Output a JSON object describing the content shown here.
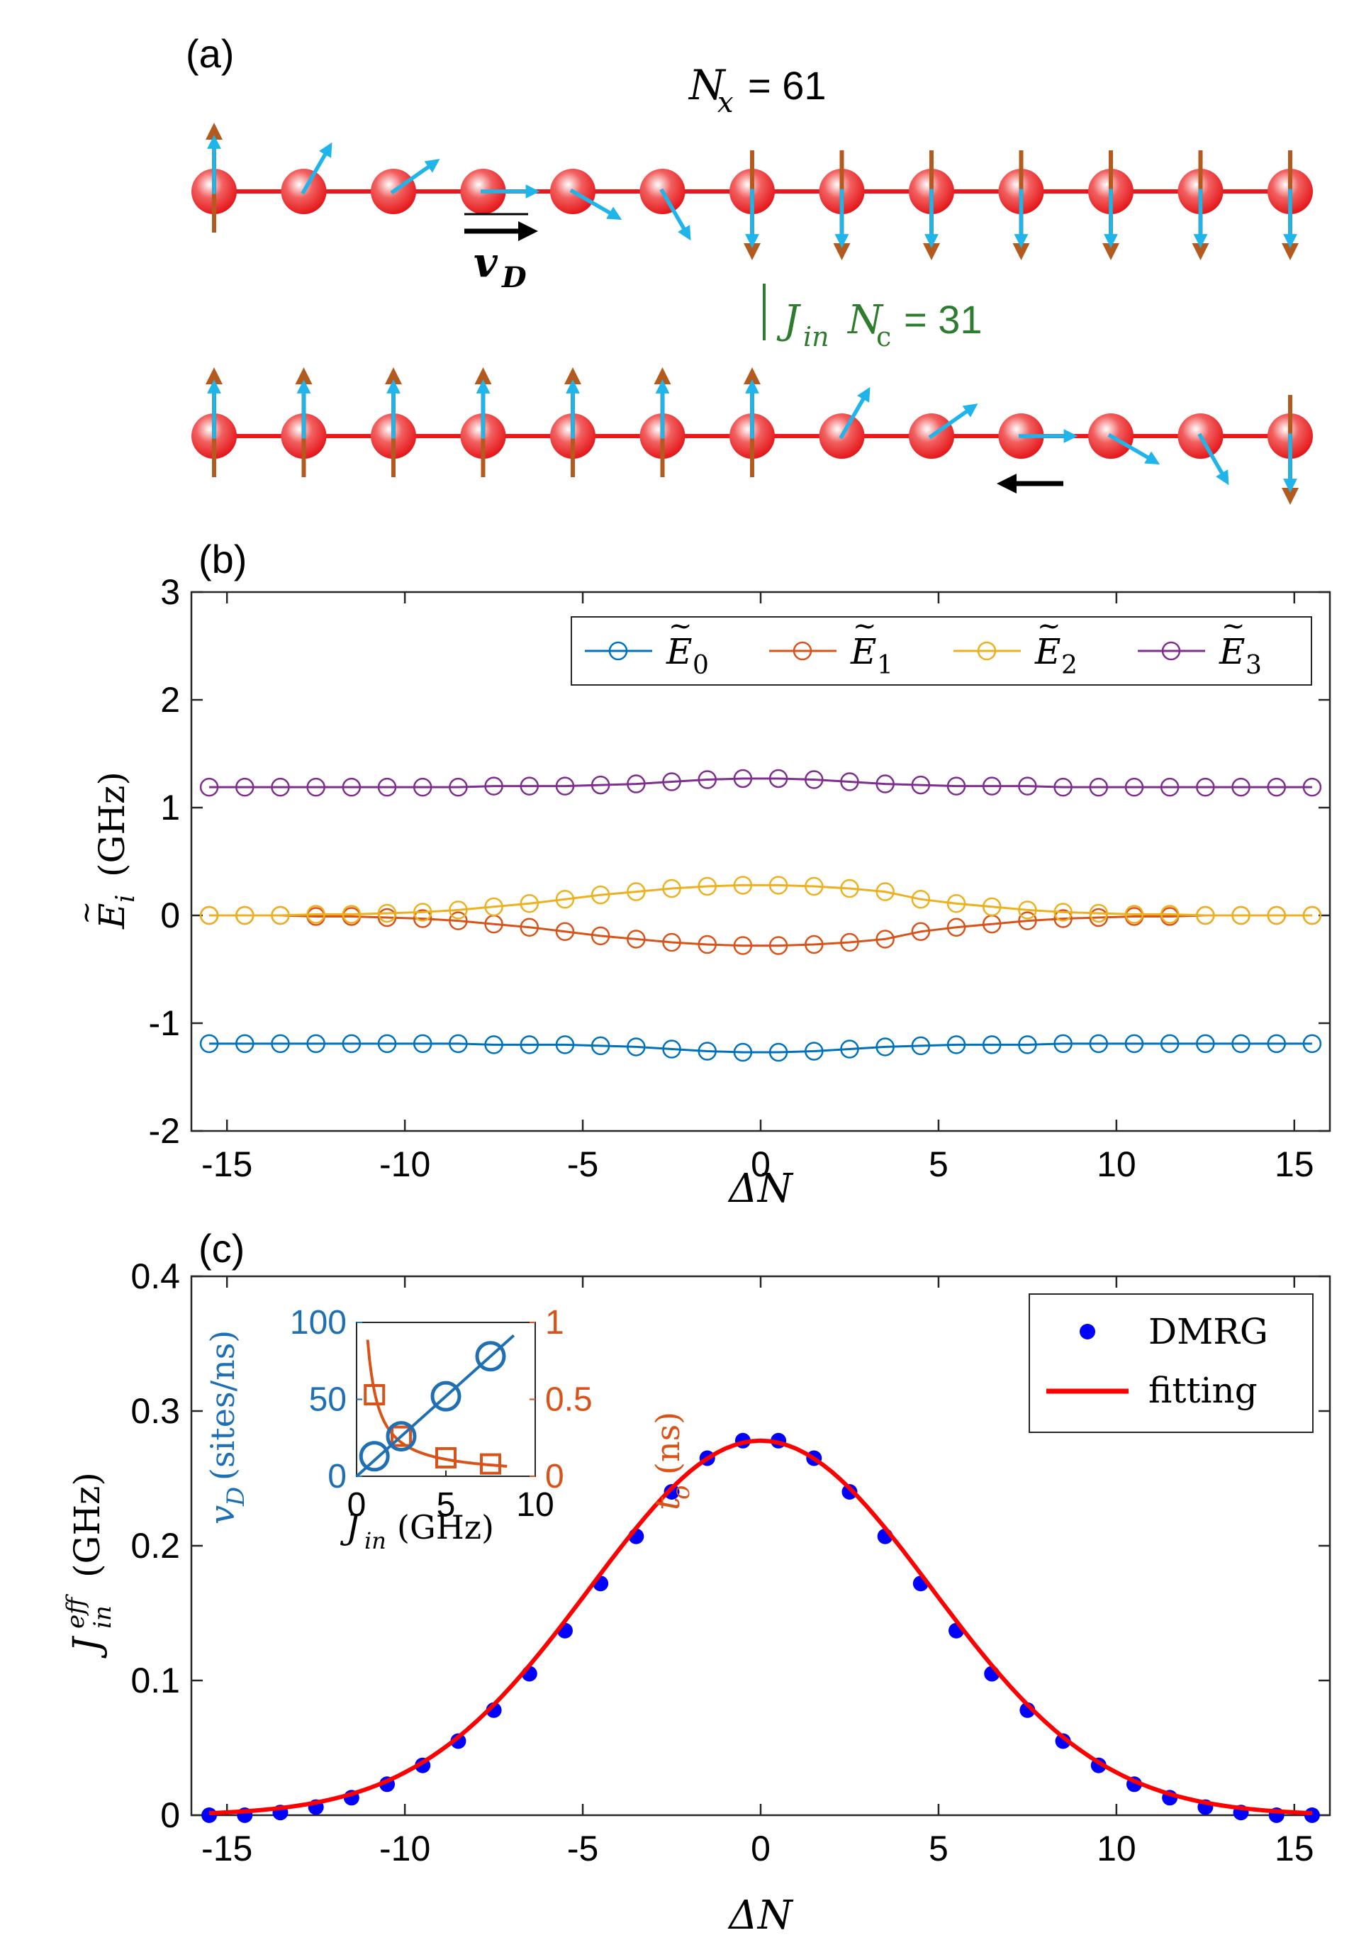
{
  "panel_a": {
    "label": "(a)",
    "nx_label": "N",
    "nx_sub": "x",
    "nx_value": "= 61",
    "vd_label": "v",
    "vd_sub": "D",
    "coupling_label": "J",
    "coupling_sub": "in",
    "nc_label": "N",
    "nc_sub": "c",
    "nc_value": "= 31",
    "sites_per_chain": 13,
    "colors": {
      "chain": "#e8181c",
      "site": "#f04848",
      "moment": "#b45a1e",
      "spin": "#1fb4ea",
      "coupling": "#2e7d2e"
    }
  },
  "chart_data": [
    {
      "type": "line",
      "panel_label": "(b)",
      "xlabel": "ΔN",
      "ylabel": "Ẽ_i (GHz)",
      "ylabel_main": "E",
      "ylabel_sub": "i",
      "ylabel_unit": "(GHz)",
      "xlim": [
        -16,
        16
      ],
      "ylim": [
        -2,
        3
      ],
      "xticks": [
        -15,
        -10,
        -5,
        0,
        5,
        10,
        15
      ],
      "xtick_labels": [
        "-15",
        "-10",
        "-5",
        "0",
        "5",
        "10",
        "15"
      ],
      "yticks": [
        -2,
        -1,
        0,
        1,
        2,
        3
      ],
      "ytick_labels": [
        "-2",
        "-1",
        "0",
        "1",
        "2",
        "3"
      ],
      "x": [
        -15.5,
        -14.5,
        -13.5,
        -12.5,
        -11.5,
        -10.5,
        -9.5,
        -8.5,
        -7.5,
        -6.5,
        -5.5,
        -4.5,
        -3.5,
        -2.5,
        -1.5,
        -0.5,
        0.5,
        1.5,
        2.5,
        3.5,
        4.5,
        5.5,
        6.5,
        7.5,
        8.5,
        9.5,
        10.5,
        11.5,
        12.5,
        13.5,
        14.5,
        15.5
      ],
      "series": [
        {
          "name": "E0",
          "label_main": "E",
          "label_sub": "0",
          "color": "#0072BD",
          "values": [
            -1.19,
            -1.19,
            -1.19,
            -1.19,
            -1.19,
            -1.19,
            -1.19,
            -1.19,
            -1.2,
            -1.2,
            -1.2,
            -1.21,
            -1.22,
            -1.24,
            -1.26,
            -1.27,
            -1.27,
            -1.26,
            -1.24,
            -1.22,
            -1.21,
            -1.2,
            -1.2,
            -1.2,
            -1.19,
            -1.19,
            -1.19,
            -1.19,
            -1.19,
            -1.19,
            -1.19,
            -1.19
          ]
        },
        {
          "name": "E1",
          "label_main": "E",
          "label_sub": "1",
          "color": "#D95319",
          "values": [
            0,
            0,
            0,
            -0.01,
            -0.01,
            -0.02,
            -0.03,
            -0.05,
            -0.08,
            -0.11,
            -0.15,
            -0.19,
            -0.22,
            -0.25,
            -0.27,
            -0.28,
            -0.28,
            -0.27,
            -0.25,
            -0.22,
            -0.15,
            -0.11,
            -0.08,
            -0.05,
            -0.03,
            -0.02,
            -0.01,
            -0.01,
            0,
            0,
            0,
            0
          ]
        },
        {
          "name": "E2",
          "label_main": "E",
          "label_sub": "2",
          "color": "#EDB120",
          "values": [
            0,
            0,
            0,
            0.01,
            0.01,
            0.02,
            0.03,
            0.05,
            0.08,
            0.11,
            0.15,
            0.19,
            0.22,
            0.25,
            0.27,
            0.28,
            0.28,
            0.27,
            0.25,
            0.22,
            0.15,
            0.11,
            0.08,
            0.05,
            0.03,
            0.02,
            0.01,
            0.01,
            0,
            0,
            0,
            0
          ]
        },
        {
          "name": "E3",
          "label_main": "E",
          "label_sub": "3",
          "color": "#7E2F8E",
          "values": [
            1.19,
            1.19,
            1.19,
            1.19,
            1.19,
            1.19,
            1.19,
            1.19,
            1.2,
            1.2,
            1.2,
            1.21,
            1.22,
            1.24,
            1.26,
            1.27,
            1.27,
            1.26,
            1.24,
            1.22,
            1.21,
            1.2,
            1.2,
            1.2,
            1.19,
            1.19,
            1.19,
            1.19,
            1.19,
            1.19,
            1.19,
            1.19
          ]
        }
      ],
      "legend_position": "top-right"
    },
    {
      "type": "scatter",
      "panel_label": "(c)",
      "xlabel": "ΔN",
      "ylabel_main": "J",
      "ylabel_sup": "eff",
      "ylabel_sub": "in",
      "ylabel_unit": "(GHz)",
      "xlim": [
        -16,
        16
      ],
      "ylim": [
        0,
        0.4
      ],
      "xticks": [
        -15,
        -10,
        -5,
        0,
        5,
        10,
        15
      ],
      "xtick_labels": [
        "-15",
        "-10",
        "-5",
        "0",
        "5",
        "10",
        "15"
      ],
      "yticks": [
        0,
        0.1,
        0.2,
        0.3,
        0.4
      ],
      "ytick_labels": [
        "0",
        "0.1",
        "0.2",
        "0.3",
        "0.4"
      ],
      "x": [
        -15.5,
        -14.5,
        -13.5,
        -12.5,
        -11.5,
        -10.5,
        -9.5,
        -8.5,
        -7.5,
        -6.5,
        -5.5,
        -4.5,
        -3.5,
        -2.5,
        -1.5,
        -0.5,
        0.5,
        1.5,
        2.5,
        3.5,
        4.5,
        5.5,
        6.5,
        7.5,
        8.5,
        9.5,
        10.5,
        11.5,
        12.5,
        13.5,
        14.5,
        15.5
      ],
      "series": [
        {
          "name": "DMRG",
          "color": "#0000FF",
          "values": [
            0,
            0,
            0.002,
            0.006,
            0.013,
            0.023,
            0.037,
            0.055,
            0.078,
            0.105,
            0.137,
            0.172,
            0.207,
            0.24,
            0.265,
            0.278,
            0.278,
            0.265,
            0.24,
            0.207,
            0.172,
            0.137,
            0.105,
            0.078,
            0.055,
            0.037,
            0.023,
            0.013,
            0.006,
            0.002,
            0,
            0
          ]
        },
        {
          "name": "fitting",
          "color": "#FF0000",
          "fit": "gaussian",
          "amplitude": 0.278,
          "center": 0,
          "sigma": 4.8
        }
      ],
      "legend_position": "top-right",
      "inset": {
        "xlabel_main": "J",
        "xlabel_sub": "in",
        "xlabel_unit": "(GHz)",
        "xlim": [
          0,
          10
        ],
        "xticks": [
          0,
          5,
          10
        ],
        "xtick_labels": [
          "0",
          "5",
          "10"
        ],
        "left_axis": {
          "label_main": "v",
          "label_sub": "D",
          "label_unit": "(sites/ns)",
          "ylim": [
            0,
            100
          ],
          "ticks": [
            0,
            50,
            100
          ],
          "tick_labels": [
            "0",
            "50",
            "100"
          ],
          "color": "#1f6fb4"
        },
        "right_axis": {
          "label_main": "t",
          "label_sub": "o",
          "label_unit": "(ns)",
          "ylim": [
            0,
            1
          ],
          "ticks": [
            0,
            0.5,
            1
          ],
          "tick_labels": [
            "0",
            "0.5",
            "1"
          ],
          "color": "#D95319"
        },
        "vd_points": {
          "x": [
            1,
            2.5,
            5,
            7.5
          ],
          "y": [
            13,
            26,
            52,
            78
          ]
        },
        "to_points": {
          "x": [
            1,
            2.5,
            5,
            7.5
          ],
          "y": [
            0.53,
            0.26,
            0.12,
            0.08
          ]
        },
        "vd_fit_slope": 10.4,
        "to_fit_numerator": 0.55
      }
    }
  ]
}
